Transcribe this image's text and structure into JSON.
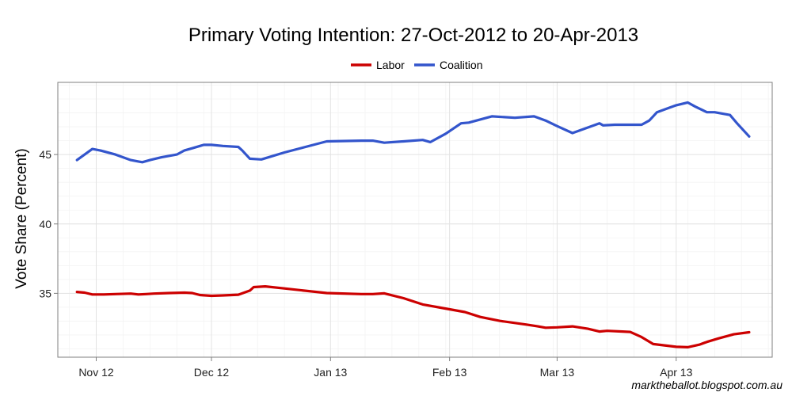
{
  "chart_data": {
    "type": "line",
    "title": "Primary Voting Intention: 27-Oct-2012 to 20-Apr-2013",
    "ylabel": "Vote Share (Percent)",
    "xlabel": "",
    "x_range": [
      "2012-10-22",
      "2013-04-26"
    ],
    "ylim": [
      30.4,
      50.2
    ],
    "y_ticks": [
      35,
      40,
      45
    ],
    "x_ticks": [
      {
        "date": "2012-11-01",
        "label": "Nov 12"
      },
      {
        "date": "2012-12-01",
        "label": "Dec 12"
      },
      {
        "date": "2013-01-01",
        "label": "Jan 13"
      },
      {
        "date": "2013-02-01",
        "label": "Feb 13"
      },
      {
        "date": "2013-03-01",
        "label": "Mar 13"
      },
      {
        "date": "2013-04-01",
        "label": "Apr 13"
      }
    ],
    "grid": true,
    "legend": "top-center",
    "series": [
      {
        "name": "Labor",
        "color": "#cc0000",
        "points": [
          [
            "2012-10-27",
            35.1
          ],
          [
            "2012-10-29",
            35.05
          ],
          [
            "2012-10-31",
            34.92
          ],
          [
            "2012-11-03",
            34.92
          ],
          [
            "2012-11-06",
            34.95
          ],
          [
            "2012-11-10",
            34.98
          ],
          [
            "2012-11-12",
            34.92
          ],
          [
            "2012-11-14",
            34.95
          ],
          [
            "2012-11-16",
            34.98
          ],
          [
            "2012-11-20",
            35.02
          ],
          [
            "2012-11-24",
            35.05
          ],
          [
            "2012-11-26",
            35.02
          ],
          [
            "2012-11-28",
            34.88
          ],
          [
            "2012-12-01",
            34.82
          ],
          [
            "2012-12-04",
            34.85
          ],
          [
            "2012-12-08",
            34.9
          ],
          [
            "2012-12-11",
            35.2
          ],
          [
            "2012-12-12",
            35.45
          ],
          [
            "2012-12-15",
            35.5
          ],
          [
            "2012-12-20",
            35.35
          ],
          [
            "2012-12-31",
            35.02
          ],
          [
            "2013-01-09",
            34.95
          ],
          [
            "2013-01-12",
            34.95
          ],
          [
            "2013-01-15",
            35.0
          ],
          [
            "2013-01-20",
            34.65
          ],
          [
            "2013-01-25",
            34.2
          ],
          [
            "2013-02-01",
            33.85
          ],
          [
            "2013-02-05",
            33.65
          ],
          [
            "2013-02-09",
            33.3
          ],
          [
            "2013-02-14",
            33.02
          ],
          [
            "2013-02-21",
            32.75
          ],
          [
            "2013-02-24",
            32.62
          ],
          [
            "2013-02-26",
            32.52
          ],
          [
            "2013-03-01",
            32.55
          ],
          [
            "2013-03-05",
            32.62
          ],
          [
            "2013-03-09",
            32.45
          ],
          [
            "2013-03-12",
            32.25
          ],
          [
            "2013-03-14",
            32.3
          ],
          [
            "2013-03-18",
            32.25
          ],
          [
            "2013-03-20",
            32.22
          ],
          [
            "2013-03-23",
            31.85
          ],
          [
            "2013-03-26",
            31.35
          ],
          [
            "2013-03-29",
            31.25
          ],
          [
            "2013-04-01",
            31.15
          ],
          [
            "2013-04-04",
            31.12
          ],
          [
            "2013-04-07",
            31.3
          ],
          [
            "2013-04-09",
            31.5
          ],
          [
            "2013-04-12",
            31.75
          ],
          [
            "2013-04-16",
            32.05
          ],
          [
            "2013-04-20",
            32.2
          ]
        ]
      },
      {
        "name": "Coalition",
        "color": "#3355cc",
        "points": [
          [
            "2012-10-27",
            44.6
          ],
          [
            "2012-10-31",
            45.4
          ],
          [
            "2012-11-02",
            45.3
          ],
          [
            "2012-11-06",
            45.0
          ],
          [
            "2012-11-10",
            44.6
          ],
          [
            "2012-11-12",
            44.5
          ],
          [
            "2012-11-13",
            44.45
          ],
          [
            "2012-11-15",
            44.6
          ],
          [
            "2012-11-18",
            44.8
          ],
          [
            "2012-11-22",
            45.0
          ],
          [
            "2012-11-24",
            45.3
          ],
          [
            "2012-11-26",
            45.45
          ],
          [
            "2012-11-29",
            45.7
          ],
          [
            "2012-12-01",
            45.7
          ],
          [
            "2012-12-04",
            45.62
          ],
          [
            "2012-12-08",
            45.55
          ],
          [
            "2012-12-09",
            45.3
          ],
          [
            "2012-12-11",
            44.7
          ],
          [
            "2012-12-14",
            44.65
          ],
          [
            "2012-12-20",
            45.15
          ],
          [
            "2012-12-31",
            45.95
          ],
          [
            "2013-01-09",
            46.0
          ],
          [
            "2013-01-12",
            46.0
          ],
          [
            "2013-01-15",
            45.85
          ],
          [
            "2013-01-20",
            45.95
          ],
          [
            "2013-01-25",
            46.05
          ],
          [
            "2013-01-27",
            45.9
          ],
          [
            "2013-01-31",
            46.5
          ],
          [
            "2013-02-04",
            47.25
          ],
          [
            "2013-02-06",
            47.3
          ],
          [
            "2013-02-12",
            47.75
          ],
          [
            "2013-02-18",
            47.65
          ],
          [
            "2013-02-23",
            47.75
          ],
          [
            "2013-02-26",
            47.45
          ],
          [
            "2013-03-01",
            47.05
          ],
          [
            "2013-03-05",
            46.55
          ],
          [
            "2013-03-10",
            47.05
          ],
          [
            "2013-03-12",
            47.25
          ],
          [
            "2013-03-13",
            47.1
          ],
          [
            "2013-03-16",
            47.15
          ],
          [
            "2013-03-20",
            47.15
          ],
          [
            "2013-03-23",
            47.15
          ],
          [
            "2013-03-25",
            47.45
          ],
          [
            "2013-03-26",
            47.75
          ],
          [
            "2013-03-27",
            48.05
          ],
          [
            "2013-03-30",
            48.35
          ],
          [
            "2013-04-01",
            48.55
          ],
          [
            "2013-04-04",
            48.75
          ],
          [
            "2013-04-06",
            48.45
          ],
          [
            "2013-04-09",
            48.05
          ],
          [
            "2013-04-11",
            48.05
          ],
          [
            "2013-04-15",
            47.85
          ],
          [
            "2013-04-17",
            47.2
          ],
          [
            "2013-04-20",
            46.3
          ]
        ]
      }
    ]
  },
  "credit": "marktheballot.blogspot.com.au"
}
